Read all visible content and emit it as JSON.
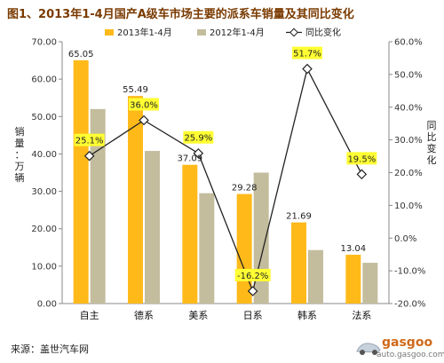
{
  "title": "图1、2013年1-4月国产A级车市场主要的派系车销量及其同比变化",
  "source": "来源：盖世汽车网",
  "watermark": {
    "brand": "gasgoo",
    "url": "auto.gasgoo.com"
  },
  "colors": {
    "series_2013": "#ffba1a",
    "series_2012": "#c3bd9e",
    "yoy_line": "#222222",
    "label_bg": "#ffff33"
  },
  "chart_data": {
    "type": "bar",
    "title": "图1、2013年1-4月国产A级车市场主要的派系车销量及其同比变化",
    "categories": [
      "自主",
      "德系",
      "美系",
      "日系",
      "韩系",
      "法系"
    ],
    "series": [
      {
        "name": "2013年1-4月",
        "values": [
          65.05,
          55.49,
          37.09,
          29.28,
          21.69,
          13.04
        ]
      },
      {
        "name": "2012年1-4月",
        "values": [
          52.0,
          40.8,
          29.5,
          35.0,
          14.3,
          10.9
        ]
      },
      {
        "name": "同比变化",
        "type": "line",
        "axis": "right",
        "values": [
          25.1,
          36.0,
          25.9,
          -16.2,
          51.7,
          19.5
        ],
        "labels": [
          "25.1%",
          "36.0%",
          "25.9%",
          "-16.2%",
          "51.7%",
          "19.5%"
        ]
      }
    ],
    "bar_labels": [
      "65.05",
      "55.49",
      "37.09",
      "29.28",
      "21.69",
      "13.04"
    ],
    "ylabel": "销量：万辆",
    "y2label": "同比变化",
    "ylim": [
      0,
      70
    ],
    "y2lim": [
      -20,
      60
    ],
    "yticks": [
      "0.00",
      "10.00",
      "20.00",
      "30.00",
      "40.00",
      "50.00",
      "60.00",
      "70.00"
    ],
    "y2ticks": [
      "-20.0%",
      "-10.0%",
      "0.0%",
      "10.0%",
      "20.0%",
      "30.0%",
      "40.0%",
      "50.0%",
      "60.0%"
    ],
    "grid": false,
    "legend_position": "top"
  }
}
